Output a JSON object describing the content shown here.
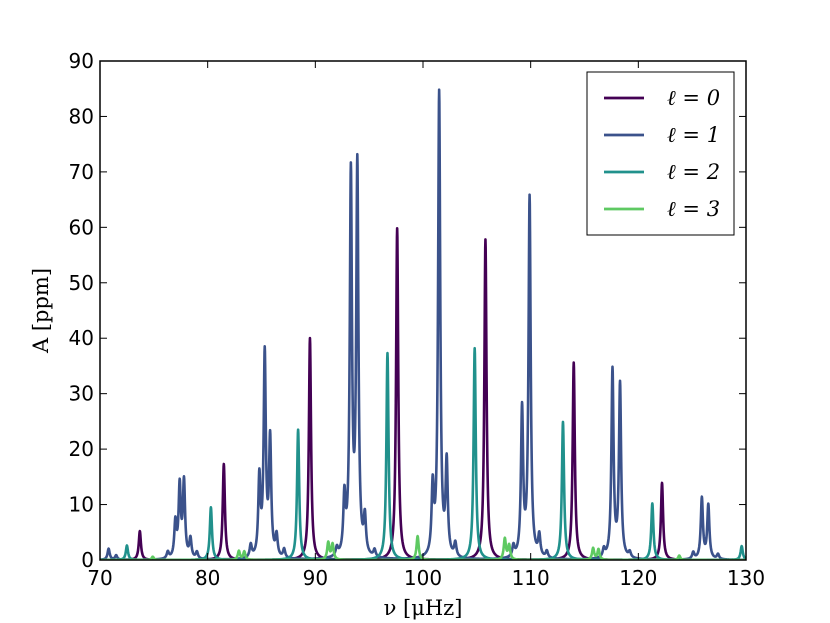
{
  "chart_data": {
    "type": "line",
    "title": "",
    "xlabel": "ν [μHz]",
    "ylabel": "A [ppm]",
    "xlim": [
      70,
      130
    ],
    "ylim": [
      0,
      90
    ],
    "x_ticks": [
      70,
      80,
      90,
      100,
      110,
      120,
      130
    ],
    "y_ticks": [
      0,
      10,
      20,
      30,
      40,
      50,
      60,
      70,
      80,
      90
    ],
    "grid": false,
    "legend_position": "top-right",
    "series": [
      {
        "name": "ℓ = 0",
        "color": "#440154",
        "peaks": [
          {
            "nu": 73.7,
            "A": 5.2
          },
          {
            "nu": 81.5,
            "A": 17.3
          },
          {
            "nu": 89.5,
            "A": 40.0
          },
          {
            "nu": 97.6,
            "A": 59.8
          },
          {
            "nu": 105.8,
            "A": 57.8
          },
          {
            "nu": 114.0,
            "A": 35.6
          },
          {
            "nu": 122.2,
            "A": 13.9
          }
        ]
      },
      {
        "name": "ℓ = 1",
        "color": "#3b528b",
        "peaks": [
          {
            "nu": 70.8,
            "A": 2.0
          },
          {
            "nu": 71.5,
            "A": 0.8
          },
          {
            "nu": 76.3,
            "A": 1.2
          },
          {
            "nu": 77.0,
            "A": 6.4
          },
          {
            "nu": 77.4,
            "A": 12.9
          },
          {
            "nu": 77.8,
            "A": 13.7
          },
          {
            "nu": 78.4,
            "A": 3.5
          },
          {
            "nu": 79.0,
            "A": 1.2
          },
          {
            "nu": 84.0,
            "A": 2.3
          },
          {
            "nu": 84.8,
            "A": 14.1
          },
          {
            "nu": 85.3,
            "A": 36.5
          },
          {
            "nu": 85.8,
            "A": 21.0
          },
          {
            "nu": 86.4,
            "A": 3.8
          },
          {
            "nu": 87.1,
            "A": 1.6
          },
          {
            "nu": 92.0,
            "A": 1.5
          },
          {
            "nu": 92.7,
            "A": 10.1
          },
          {
            "nu": 93.3,
            "A": 68.5
          },
          {
            "nu": 93.9,
            "A": 70.2
          },
          {
            "nu": 94.6,
            "A": 6.5
          },
          {
            "nu": 95.5,
            "A": 1.3
          },
          {
            "nu": 100.9,
            "A": 12.0
          },
          {
            "nu": 101.5,
            "A": 83.8
          },
          {
            "nu": 102.2,
            "A": 16.6
          },
          {
            "nu": 103.0,
            "A": 2.5
          },
          {
            "nu": 108.4,
            "A": 2.0
          },
          {
            "nu": 109.2,
            "A": 26.5
          },
          {
            "nu": 109.9,
            "A": 65.0
          },
          {
            "nu": 110.8,
            "A": 3.8
          },
          {
            "nu": 111.5,
            "A": 1.2
          },
          {
            "nu": 116.8,
            "A": 1.5
          },
          {
            "nu": 117.6,
            "A": 33.9
          },
          {
            "nu": 118.3,
            "A": 31.3
          },
          {
            "nu": 119.2,
            "A": 1.0
          },
          {
            "nu": 125.1,
            "A": 1.2
          },
          {
            "nu": 125.9,
            "A": 11.0
          },
          {
            "nu": 126.5,
            "A": 9.7
          },
          {
            "nu": 127.4,
            "A": 0.9
          }
        ]
      },
      {
        "name": "ℓ = 2",
        "color": "#21918c",
        "peaks": [
          {
            "nu": 72.5,
            "A": 2.6
          },
          {
            "nu": 80.3,
            "A": 9.5
          },
          {
            "nu": 88.4,
            "A": 23.5
          },
          {
            "nu": 96.7,
            "A": 37.3
          },
          {
            "nu": 104.8,
            "A": 38.2
          },
          {
            "nu": 113.0,
            "A": 24.9
          },
          {
            "nu": 121.3,
            "A": 10.2
          },
          {
            "nu": 129.6,
            "A": 2.5
          }
        ]
      },
      {
        "name": "ℓ = 3",
        "color": "#5ec962",
        "peaks": [
          {
            "nu": 74.9,
            "A": 0.6
          },
          {
            "nu": 82.9,
            "A": 1.6
          },
          {
            "nu": 83.4,
            "A": 1.5
          },
          {
            "nu": 91.2,
            "A": 3.1
          },
          {
            "nu": 91.6,
            "A": 2.8
          },
          {
            "nu": 99.5,
            "A": 4.3
          },
          {
            "nu": 107.6,
            "A": 3.8
          },
          {
            "nu": 108.0,
            "A": 2.6
          },
          {
            "nu": 115.8,
            "A": 2.1
          },
          {
            "nu": 116.3,
            "A": 1.9
          },
          {
            "nu": 123.8,
            "A": 0.8
          }
        ]
      }
    ]
  }
}
